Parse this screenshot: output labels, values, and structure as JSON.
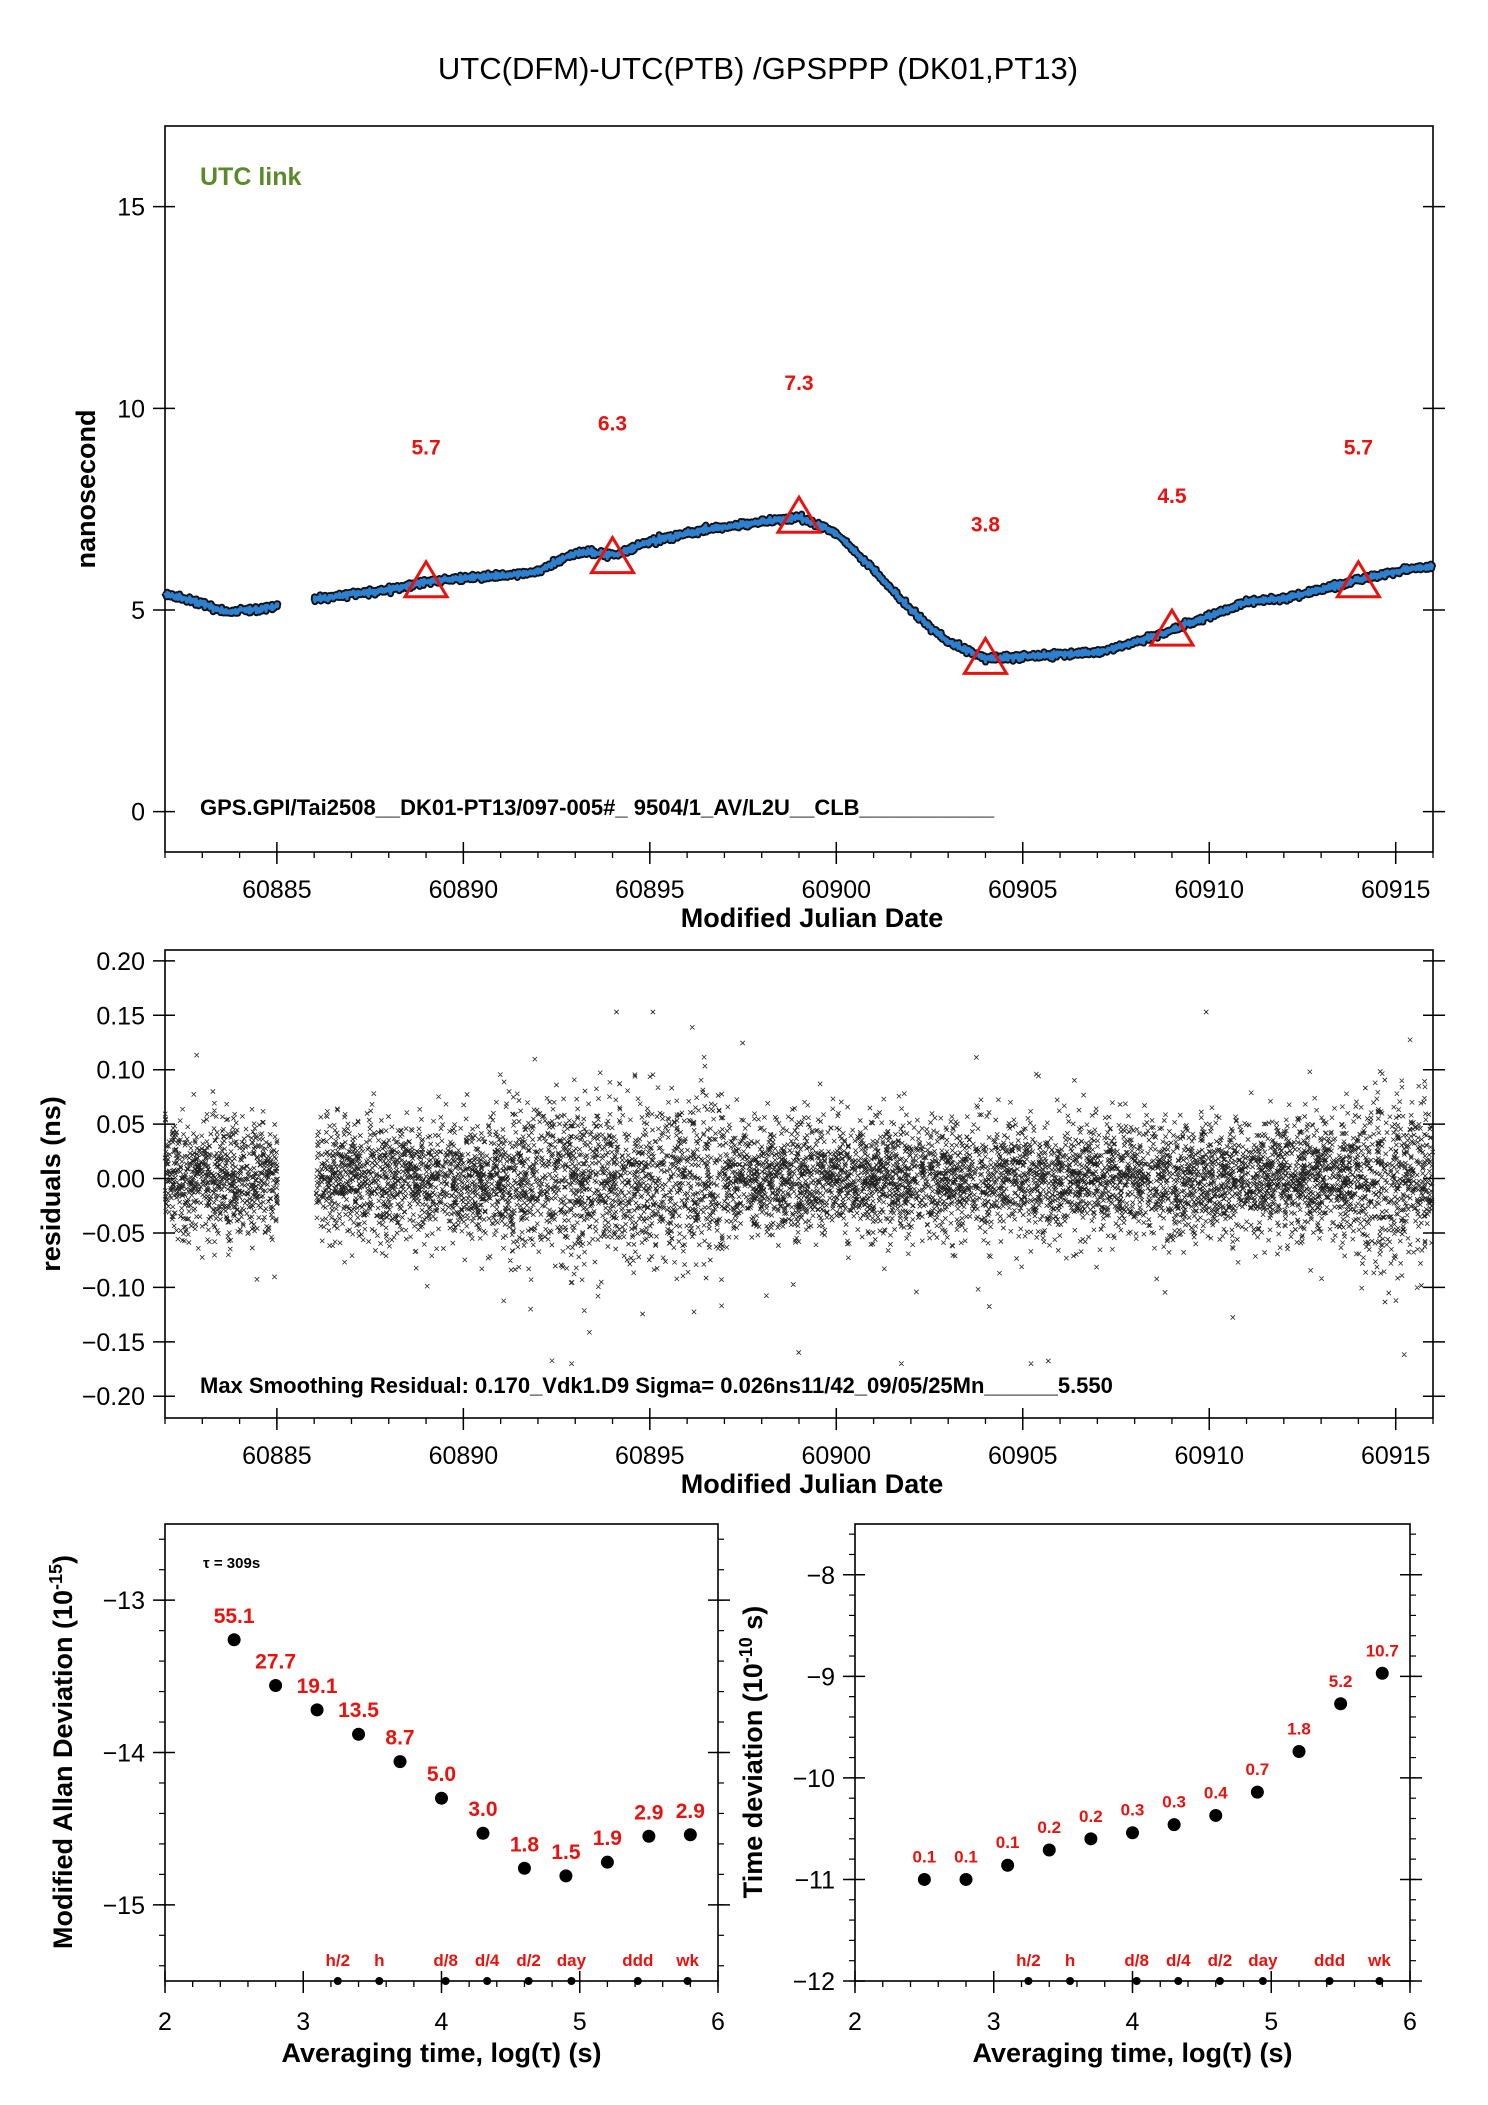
{
  "title": "UTC(DFM)-UTC(PTB)  /GPSPPP  (DK01,PT13)",
  "colors": {
    "series": "#2d7fd0",
    "outline": "#111111",
    "marker": "#e8130f",
    "link_label": "#5a8a2a"
  },
  "chart_data": [
    {
      "id": "clock-difference",
      "type": "line",
      "link_label": "UTC link",
      "ylabel": "nanosecond",
      "xlabel": "Modified Julian Date",
      "xlim": [
        60882,
        60916
      ],
      "ylim": [
        -1,
        17
      ],
      "xticks": [
        60885,
        60890,
        60895,
        60900,
        60905,
        60910,
        60915
      ],
      "yticks": [
        0,
        5,
        10,
        15
      ],
      "gap": [
        60885.0,
        60886.0
      ],
      "curve": {
        "x": [
          60882,
          60883,
          60883.6,
          60884.3,
          60885,
          60886,
          60887,
          60888,
          60889,
          60890,
          60891,
          60892,
          60892.8,
          60893.2,
          60894,
          60895,
          60896,
          60897,
          60898,
          60899,
          60900,
          60901,
          60902,
          60903,
          60904,
          60905,
          60906,
          60907,
          60908,
          60909,
          60910,
          60911,
          60912,
          60913,
          60914,
          60915,
          60916
        ],
        "y": [
          5.4,
          5.15,
          4.95,
          5.0,
          5.1,
          5.25,
          5.4,
          5.5,
          5.7,
          5.8,
          5.85,
          5.95,
          6.35,
          6.45,
          6.35,
          6.7,
          6.9,
          7.05,
          7.2,
          7.3,
          6.9,
          6.0,
          5.0,
          4.2,
          3.8,
          3.85,
          3.9,
          3.95,
          4.2,
          4.5,
          4.85,
          5.2,
          5.3,
          5.5,
          5.75,
          5.95,
          6.1
        ]
      },
      "markers": [
        {
          "x": 60889,
          "y": 5.7,
          "label": "5.7"
        },
        {
          "x": 60894,
          "y": 6.3,
          "label": "6.3"
        },
        {
          "x": 60899,
          "y": 7.3,
          "label": "7.3"
        },
        {
          "x": 60904,
          "y": 3.8,
          "label": "3.8"
        },
        {
          "x": 60909,
          "y": 4.5,
          "label": "4.5"
        },
        {
          "x": 60914,
          "y": 5.7,
          "label": "5.7"
        }
      ],
      "footer": "GPS.GPI/Tai2508__DK01-PT13/097-005#_  9504/1_AV/L2U__CLB___________"
    },
    {
      "id": "residuals",
      "type": "scatter",
      "ylabel": "residuals (ns)",
      "xlabel": "Modified Julian Date",
      "xlim": [
        60882,
        60916
      ],
      "ylim": [
        -0.22,
        0.21
      ],
      "xticks": [
        60885,
        60890,
        60895,
        60900,
        60905,
        60910,
        60915
      ],
      "yticks": [
        -0.2,
        -0.15,
        -0.1,
        -0.05,
        0.0,
        0.05,
        0.1,
        0.15,
        0.2
      ],
      "ytick_labels": [
        "−0.20",
        "−0.15",
        "−0.10",
        "−0.05",
        "0.00",
        "0.05",
        "0.10",
        "0.15",
        "0.20"
      ],
      "gap": [
        60885.0,
        60886.0
      ],
      "sigma": 0.026,
      "max_abs": 0.17,
      "footer": "Max Smoothing Residual: 0.170_Vdk1.D9  Sigma= 0.026ns11/42_09/05/25Mn______5.550"
    },
    {
      "id": "mdev",
      "type": "scatter",
      "ylabel": "Modified Allan Deviation (10",
      "ylabel_sup": "-15",
      "ylabel_end": ")",
      "xlabel": "Averaging time, log(τ) (s)",
      "tau_note": "τ = 309s",
      "xlim": [
        2,
        6
      ],
      "ylim": [
        -15.5,
        -12.5
      ],
      "xticks": [
        2,
        3,
        4,
        5,
        6
      ],
      "yticks": [
        -13,
        -14,
        -15
      ],
      "ytick_labels": [
        "−13",
        "−14",
        "−15"
      ],
      "x": [
        2.5,
        2.8,
        3.1,
        3.4,
        3.7,
        4.0,
        4.3,
        4.6,
        4.9,
        5.2,
        5.5,
        5.8
      ],
      "y": [
        -13.26,
        -13.56,
        -13.72,
        -13.88,
        -14.06,
        -14.3,
        -14.53,
        -14.76,
        -14.81,
        -14.72,
        -14.55,
        -14.54
      ],
      "labels": [
        "55.1",
        "27.7",
        "19.1",
        "13.5",
        "8.7",
        "5.0",
        "3.0",
        "1.8",
        "1.5",
        "1.9",
        "2.9",
        "2.9"
      ],
      "time_marks": [
        {
          "x": 3.25,
          "label": "h/2"
        },
        {
          "x": 3.55,
          "label": "h"
        },
        {
          "x": 4.03,
          "label": "d/8"
        },
        {
          "x": 4.33,
          "label": "d/4"
        },
        {
          "x": 4.63,
          "label": "d/2"
        },
        {
          "x": 4.94,
          "label": "day"
        },
        {
          "x": 5.42,
          "label": "ddd"
        },
        {
          "x": 5.78,
          "label": "wk"
        }
      ]
    },
    {
      "id": "tdev",
      "type": "scatter",
      "ylabel": "Time deviation (10",
      "ylabel_sup": "-10",
      "ylabel_end": " s)",
      "xlabel": "Averaging time, log(τ) (s)",
      "xlim": [
        2,
        6
      ],
      "ylim": [
        -12,
        -7.5
      ],
      "xticks": [
        2,
        3,
        4,
        5,
        6
      ],
      "yticks": [
        -8,
        -9,
        -10,
        -11,
        -12
      ],
      "ytick_labels": [
        "−8",
        "−9",
        "−10",
        "−11",
        "−12"
      ],
      "x": [
        2.5,
        2.8,
        3.1,
        3.4,
        3.7,
        4.0,
        4.3,
        4.6,
        4.9,
        5.2,
        5.5,
        5.8
      ],
      "y": [
        -11.0,
        -11.0,
        -10.86,
        -10.71,
        -10.6,
        -10.54,
        -10.46,
        -10.37,
        -10.14,
        -9.74,
        -9.27,
        -8.97
      ],
      "labels": [
        "0.1",
        "0.1",
        "0.1",
        "0.2",
        "0.2",
        "0.3",
        "0.3",
        "0.4",
        "0.7",
        "1.8",
        "5.2",
        "10.7"
      ],
      "time_marks": [
        {
          "x": 3.25,
          "label": "h/2"
        },
        {
          "x": 3.55,
          "label": "h"
        },
        {
          "x": 4.03,
          "label": "d/8"
        },
        {
          "x": 4.33,
          "label": "d/4"
        },
        {
          "x": 4.63,
          "label": "d/2"
        },
        {
          "x": 4.94,
          "label": "day"
        },
        {
          "x": 5.42,
          "label": "ddd"
        },
        {
          "x": 5.78,
          "label": "wk"
        }
      ]
    }
  ]
}
